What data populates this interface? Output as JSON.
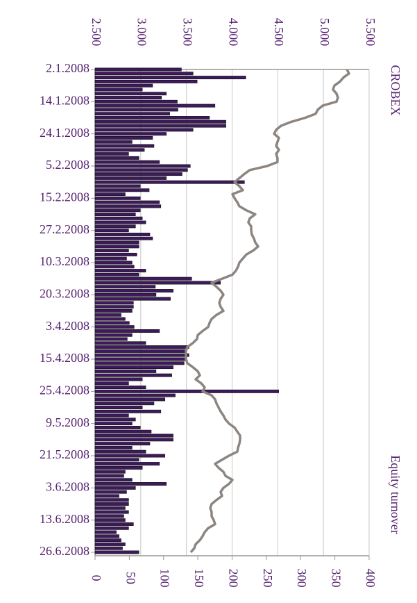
{
  "chart_data": {
    "type": "bar",
    "axis_titles": {
      "x": "Equity turnover",
      "x2": "CROBEX"
    },
    "categories": [
      "2.1.2008",
      null,
      null,
      null,
      null,
      null,
      null,
      null,
      "14.1.2008",
      null,
      null,
      null,
      null,
      null,
      null,
      null,
      "24.1.2008",
      null,
      null,
      null,
      null,
      null,
      null,
      null,
      "5.2.2008",
      null,
      null,
      null,
      null,
      null,
      null,
      null,
      "15.2.2008",
      null,
      null,
      null,
      null,
      null,
      null,
      null,
      "27.2.2008",
      null,
      null,
      null,
      null,
      null,
      null,
      null,
      "10.3.2008",
      null,
      null,
      null,
      null,
      null,
      null,
      null,
      "20.3.2008",
      null,
      null,
      null,
      null,
      null,
      null,
      null,
      "3.4.2008",
      null,
      null,
      null,
      null,
      null,
      null,
      null,
      "15.4.2008",
      null,
      null,
      null,
      null,
      null,
      null,
      null,
      "25.4.2008",
      null,
      null,
      null,
      null,
      null,
      null,
      null,
      "9.5.2008",
      null,
      null,
      null,
      null,
      null,
      null,
      null,
      "21.5.2008",
      null,
      null,
      null,
      null,
      null,
      null,
      null,
      "3.6.2008",
      null,
      null,
      null,
      null,
      null,
      null,
      null,
      "13.6.2008",
      null,
      null,
      null,
      null,
      null,
      null,
      null,
      "26.6.2008"
    ],
    "series": [
      {
        "name": "Equity turnover",
        "type": "bar",
        "color": "#3d1a5c",
        "axis": "x",
        "values": [
          126,
          143,
          220,
          149,
          84,
          69,
          104,
          97,
          120,
          175,
          121,
          109,
          167,
          191,
          191,
          143,
          104,
          84,
          54,
          86,
          72,
          49,
          64,
          94,
          139,
          135,
          127,
          104,
          218,
          66,
          79,
          44,
          66,
          94,
          96,
          66,
          59,
          69,
          74,
          59,
          49,
          80,
          84,
          64,
          64,
          49,
          61,
          46,
          54,
          57,
          74,
          64,
          141,
          183,
          88,
          114,
          89,
          110,
          56,
          56,
          54,
          38,
          44,
          50,
          57,
          94,
          54,
          47,
          74,
          137,
          131,
          137,
          133,
          130,
          114,
          89,
          112,
          69,
          49,
          74,
          268,
          117,
          102,
          86,
          69,
          96,
          49,
          59,
          54,
          66,
          82,
          114,
          114,
          80,
          54,
          74,
          102,
          64,
          94,
          69,
          44,
          42,
          54,
          104,
          59,
          46,
          35,
          49,
          49,
          44,
          49,
          42,
          44,
          56,
          49,
          31,
          35,
          38,
          44,
          40,
          64
        ]
      },
      {
        "name": "CROBEX",
        "type": "line",
        "color": "#8c8580",
        "axis": "x2",
        "values": [
          5257,
          5280,
          5219,
          5181,
          5120,
          5105,
          5143,
          5158,
          5143,
          4991,
          4938,
          4915,
          4801,
          4649,
          4535,
          4482,
          4460,
          4513,
          4497,
          4482,
          4513,
          4482,
          4497,
          4497,
          4384,
          4194,
          4133,
          4080,
          4027,
          4080,
          4118,
          4004,
          4027,
          4057,
          4080,
          4156,
          4254,
          4194,
          4178,
          4209,
          4209,
          4216,
          4239,
          4254,
          4285,
          4232,
          4156,
          4118,
          4080,
          4065,
          4042,
          4004,
          3890,
          3776,
          3829,
          3875,
          3905,
          3875,
          3860,
          3875,
          3905,
          3829,
          3776,
          3753,
          3738,
          3677,
          3624,
          3616,
          3571,
          3510,
          3495,
          3495,
          3495,
          3510,
          3571,
          3624,
          3647,
          3601,
          3662,
          3700,
          3677,
          3776,
          3814,
          3829,
          3852,
          3875,
          3905,
          3928,
          3966,
          4027,
          4057,
          4087,
          4087,
          4080,
          4065,
          4057,
          3966,
          3890,
          3814,
          3852,
          3905,
          3928,
          4004,
          3966,
          3905,
          3875,
          3890,
          3829,
          3776,
          3761,
          3776,
          3776,
          3799,
          3814,
          3738,
          3700,
          3677,
          3647,
          3601,
          3586,
          3548
        ]
      }
    ],
    "xlim": [
      0,
      400
    ],
    "xticks": [
      0,
      50,
      100,
      150,
      200,
      250,
      300,
      350,
      400
    ],
    "x2lim": [
      2500,
      5500
    ],
    "x2ticks": [
      {
        "value": 2500,
        "label": "2.500"
      },
      {
        "value": 3000,
        "label": "3.000"
      },
      {
        "value": 3500,
        "label": "3.500"
      },
      {
        "value": 4000,
        "label": "4.000"
      },
      {
        "value": 4500,
        "label": "4.500"
      },
      {
        "value": 5000,
        "label": "5.000"
      },
      {
        "value": 5500,
        "label": "5.500"
      }
    ],
    "grid": true,
    "grid_axis": "x2"
  }
}
